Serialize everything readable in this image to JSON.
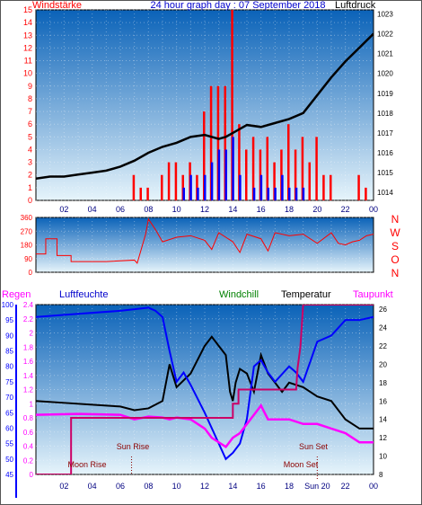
{
  "header": {
    "left_label": "Windstärke",
    "title": "24 hour graph day : 07 September 2018",
    "right_label": "Luftdruck"
  },
  "bottom_header": {
    "regen": "Regen",
    "luftfeuchte": "Luftfeuchte",
    "windchill": "Windchill",
    "temperatur": "Temperatur",
    "taupunkt": "Taupunkt"
  },
  "colors": {
    "background_top": "#0a62b8",
    "background_bottom": "#e6f4fb",
    "wind": "#ff0000",
    "gust": "#0000ff",
    "pressure": "#000000",
    "temperature": "#000000",
    "humidity": "#0000ff",
    "dewpoint": "#ff00ff",
    "windchill": "#008000",
    "rain": "#cc0066",
    "axis_left": "#ff0000",
    "axis_pressure": "#000000",
    "axis_humidity": "#0000ff",
    "axis_rain": "#ff00ff",
    "sun_text": "#8b0000"
  },
  "chart_data": [
    {
      "type": "line",
      "name": "wind-pressure",
      "x_ticks": [
        "02",
        "04",
        "06",
        "08",
        "10",
        "12",
        "14",
        "16",
        "18",
        "20",
        "22",
        "00"
      ],
      "y_left": {
        "label": "Windstärke",
        "ticks": [
          0,
          1,
          2,
          3,
          4,
          5,
          6,
          7,
          8,
          9,
          10,
          11,
          12,
          13,
          14,
          15
        ],
        "ylim": [
          0,
          15
        ]
      },
      "y_right": {
        "label": "Luftdruck",
        "ticks": [
          1014,
          1015,
          1016,
          1017,
          1018,
          1019,
          1020,
          1021,
          1022,
          1023
        ],
        "ylim": [
          1013.6,
          1023.2
        ]
      },
      "pressure_points": [
        [
          0,
          1014.7
        ],
        [
          1,
          1014.8
        ],
        [
          2,
          1014.8
        ],
        [
          3,
          1014.9
        ],
        [
          4,
          1015.0
        ],
        [
          5,
          1015.1
        ],
        [
          6,
          1015.3
        ],
        [
          7,
          1015.6
        ],
        [
          8,
          1016.0
        ],
        [
          9,
          1016.3
        ],
        [
          10,
          1016.5
        ],
        [
          11,
          1016.8
        ],
        [
          12,
          1016.9
        ],
        [
          13,
          1016.7
        ],
        [
          13.5,
          1016.8
        ],
        [
          14,
          1017.0
        ],
        [
          15,
          1017.4
        ],
        [
          16,
          1017.3
        ],
        [
          17,
          1017.5
        ],
        [
          18,
          1017.7
        ],
        [
          19,
          1018.0
        ],
        [
          20,
          1018.9
        ],
        [
          21,
          1019.8
        ],
        [
          22,
          1020.6
        ],
        [
          23,
          1021.3
        ],
        [
          24,
          1022.0
        ]
      ],
      "wind_bars": [
        [
          7.0,
          2
        ],
        [
          7.5,
          1
        ],
        [
          8.0,
          1
        ],
        [
          8.5,
          0
        ],
        [
          9.0,
          2
        ],
        [
          9.5,
          3
        ],
        [
          10.0,
          3
        ],
        [
          10.5,
          2
        ],
        [
          11.0,
          3
        ],
        [
          11.5,
          2
        ],
        [
          12.0,
          7
        ],
        [
          12.5,
          9
        ],
        [
          13.0,
          9
        ],
        [
          13.5,
          9
        ],
        [
          14.0,
          15
        ],
        [
          14.5,
          6
        ],
        [
          15.0,
          4
        ],
        [
          15.5,
          5
        ],
        [
          16.0,
          4
        ],
        [
          16.5,
          5
        ],
        [
          17.0,
          3
        ],
        [
          17.5,
          4
        ],
        [
          18.0,
          6
        ],
        [
          18.5,
          4
        ],
        [
          19.0,
          5
        ],
        [
          19.5,
          3
        ],
        [
          20.0,
          5
        ],
        [
          20.5,
          2
        ],
        [
          21.0,
          2
        ],
        [
          23.0,
          2
        ],
        [
          23.5,
          1
        ]
      ],
      "gust_bars": [
        [
          10.5,
          1
        ],
        [
          11.0,
          2
        ],
        [
          11.5,
          1
        ],
        [
          12.0,
          2
        ],
        [
          12.5,
          3
        ],
        [
          13.0,
          4
        ],
        [
          13.5,
          4
        ],
        [
          14.0,
          5
        ],
        [
          14.5,
          2
        ],
        [
          15.5,
          1
        ],
        [
          16.0,
          2
        ],
        [
          16.5,
          1
        ],
        [
          17.0,
          1
        ],
        [
          17.5,
          2
        ],
        [
          18.0,
          1
        ],
        [
          18.5,
          1
        ],
        [
          19.0,
          1
        ]
      ]
    },
    {
      "type": "line",
      "name": "wind-direction",
      "y_ticks": [
        0,
        90,
        180,
        270,
        360
      ],
      "ylim": [
        0,
        360
      ],
      "compass_labels": [
        "N",
        "W",
        "S",
        "O",
        "N"
      ],
      "direction_points": [
        [
          0,
          120
        ],
        [
          0.7,
          120
        ],
        [
          0.7,
          220
        ],
        [
          1.5,
          220
        ],
        [
          1.5,
          110
        ],
        [
          2.5,
          110
        ],
        [
          2.5,
          70
        ],
        [
          5.0,
          70
        ],
        [
          5.0,
          70
        ],
        [
          7.0,
          80
        ],
        [
          7.2,
          60
        ],
        [
          7.8,
          250
        ],
        [
          8.0,
          350
        ],
        [
          8.5,
          280
        ],
        [
          9.0,
          200
        ],
        [
          10,
          230
        ],
        [
          11,
          240
        ],
        [
          12,
          210
        ],
        [
          12.5,
          150
        ],
        [
          13,
          260
        ],
        [
          14,
          200
        ],
        [
          14.5,
          130
        ],
        [
          15,
          250
        ],
        [
          16,
          220
        ],
        [
          16.5,
          140
        ],
        [
          17,
          260
        ],
        [
          18,
          240
        ],
        [
          19,
          250
        ],
        [
          20,
          190
        ],
        [
          21,
          260
        ],
        [
          21.5,
          190
        ],
        [
          22,
          180
        ],
        [
          22.5,
          200
        ],
        [
          23,
          210
        ],
        [
          23.5,
          240
        ],
        [
          24,
          250
        ]
      ]
    },
    {
      "type": "line",
      "name": "temperature-humidity",
      "x_ticks": [
        "02",
        "04",
        "06",
        "08",
        "10",
        "12",
        "14",
        "16",
        "18",
        "Sun 20",
        "22",
        "00"
      ],
      "y_rain": {
        "label": "Regen",
        "ticks": [
          "0",
          "0.2",
          "0.4",
          "0.6",
          "0.8",
          "1",
          "1.2",
          "1.4",
          "1.6",
          "1.8",
          "2",
          "2.2",
          "2.4"
        ],
        "ylim": [
          0,
          2.4
        ]
      },
      "y_humidity": {
        "label": "Luftfeuchte",
        "ticks": [
          45,
          50,
          55,
          60,
          65,
          70,
          75,
          80,
          85,
          90,
          95,
          100
        ],
        "ylim": [
          45,
          100
        ]
      },
      "y_temp": {
        "label": "Temperatur",
        "ticks": [
          8,
          10,
          12,
          14,
          16,
          18,
          20,
          22,
          24,
          26
        ],
        "ylim": [
          8,
          26.5
        ]
      },
      "series": [
        {
          "name": "Temperatur",
          "points": [
            [
              0,
              16.0
            ],
            [
              2,
              15.8
            ],
            [
              4,
              15.6
            ],
            [
              6,
              15.4
            ],
            [
              7,
              15.0
            ],
            [
              8,
              15.2
            ],
            [
              9,
              16.0
            ],
            [
              9.5,
              20.0
            ],
            [
              10,
              17.5
            ],
            [
              11,
              19.0
            ],
            [
              12,
              22.0
            ],
            [
              12.5,
              23.0
            ],
            [
              13,
              22.0
            ],
            [
              13.5,
              21.0
            ],
            [
              13.8,
              17.0
            ],
            [
              14,
              16.0
            ],
            [
              14.2,
              18.0
            ],
            [
              14.5,
              19.5
            ],
            [
              15,
              19.0
            ],
            [
              15.5,
              17.0
            ],
            [
              16,
              21.0
            ],
            [
              16.5,
              19.0
            ],
            [
              17,
              18.0
            ],
            [
              17.5,
              17.0
            ],
            [
              18,
              18.0
            ],
            [
              19,
              17.5
            ],
            [
              20,
              16.5
            ],
            [
              21,
              16.0
            ],
            [
              22,
              14.0
            ],
            [
              23,
              13.0
            ],
            [
              24,
              13.0
            ]
          ]
        },
        {
          "name": "Luftfeuchte",
          "points": [
            [
              0,
              96
            ],
            [
              3,
              97
            ],
            [
              6,
              98
            ],
            [
              8,
              99
            ],
            [
              8.5,
              98
            ],
            [
              9,
              96
            ],
            [
              9.5,
              85
            ],
            [
              10,
              75
            ],
            [
              10.5,
              78
            ],
            [
              11,
              74
            ],
            [
              12,
              65
            ],
            [
              13,
              55
            ],
            [
              13.5,
              50
            ],
            [
              14,
              52
            ],
            [
              14.5,
              55
            ],
            [
              15,
              63
            ],
            [
              15.5,
              80
            ],
            [
              16,
              82
            ],
            [
              16.5,
              78
            ],
            [
              17,
              75
            ],
            [
              18,
              80
            ],
            [
              18.5,
              78
            ],
            [
              19,
              75
            ],
            [
              20,
              88
            ],
            [
              21,
              90
            ],
            [
              22,
              95
            ],
            [
              23,
              95
            ],
            [
              24,
              96
            ]
          ]
        },
        {
          "name": "Taupunkt",
          "points": [
            [
              0,
              14.5
            ],
            [
              3,
              14.6
            ],
            [
              6,
              14.5
            ],
            [
              7,
              14.0
            ],
            [
              8,
              14.3
            ],
            [
              9,
              14.2
            ],
            [
              9.5,
              14.0
            ],
            [
              10,
              14.2
            ],
            [
              11,
              14.0
            ],
            [
              12,
              13.0
            ],
            [
              12.5,
              12.0
            ],
            [
              13,
              11.5
            ],
            [
              13.5,
              11.0
            ],
            [
              14,
              12.0
            ],
            [
              14.5,
              12.5
            ],
            [
              15,
              13.5
            ],
            [
              15.5,
              14.5
            ],
            [
              16,
              15.5
            ],
            [
              16.5,
              14.0
            ],
            [
              17,
              14.0
            ],
            [
              18,
              14.0
            ],
            [
              19,
              13.5
            ],
            [
              20,
              13.5
            ],
            [
              21,
              13.0
            ],
            [
              22,
              12.5
            ],
            [
              23,
              11.5
            ],
            [
              24,
              11.5
            ]
          ]
        },
        {
          "name": "Regen",
          "points": [
            [
              0,
              0
            ],
            [
              2.5,
              0
            ],
            [
              2.5,
              0.8
            ],
            [
              7,
              0.8
            ],
            [
              13,
              0.8
            ],
            [
              14.0,
              0.8
            ],
            [
              14.0,
              1.0
            ],
            [
              14.4,
              1.0
            ],
            [
              14.4,
              1.2
            ],
            [
              18.5,
              1.2
            ],
            [
              18.6,
              1.5
            ],
            [
              18.8,
              1.8
            ],
            [
              19.0,
              2.4
            ],
            [
              23.0,
              2.4
            ],
            [
              24,
              2.4
            ]
          ]
        }
      ],
      "annotations": {
        "sun_rise": "Sun Rise",
        "moon_rise": "Moon Rise",
        "sun_set": "Sun Set",
        "moon_set": "Moon Set"
      }
    }
  ]
}
